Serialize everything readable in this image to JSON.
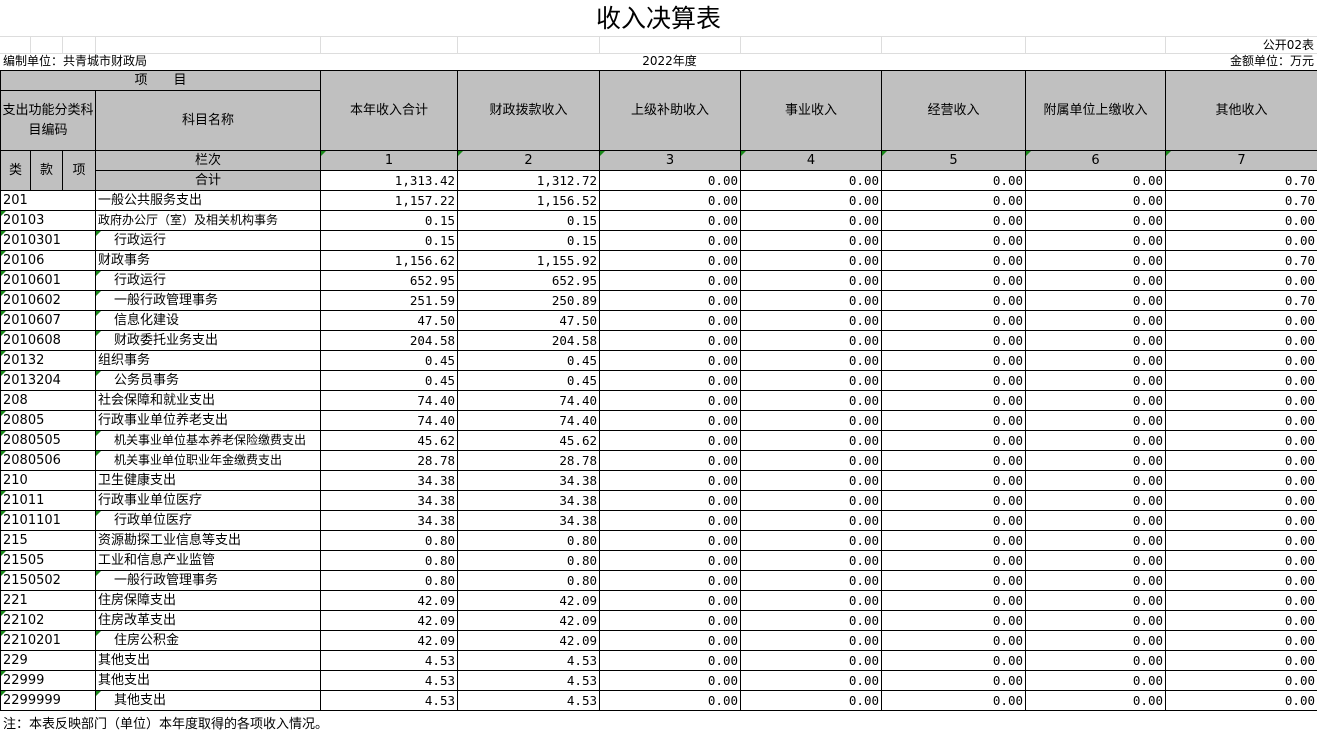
{
  "title": "收入决算表",
  "form_code": "公开02表",
  "unit_label": "编制单位：共青城市财政局",
  "year": "2022年度",
  "amount_unit": "金额单位：万元",
  "header": {
    "item": "项　　目",
    "code_group": "支出功能分类科目编码",
    "name": "科目名称",
    "columns": [
      "本年收入合计",
      "财政拨款收入",
      "上级补助收入",
      "事业收入",
      "经营收入",
      "附属单位上缴收入",
      "其他收入"
    ],
    "lei": "类",
    "kuan": "款",
    "xiang": "项",
    "lanci": "栏次",
    "col_numbers": [
      "1",
      "2",
      "3",
      "4",
      "5",
      "6",
      "7"
    ],
    "total_label": "合计",
    "total_values": [
      "1,313.42",
      "1,312.72",
      "0.00",
      "0.00",
      "0.00",
      "0.00",
      "0.70"
    ]
  },
  "rows": [
    {
      "code": "201",
      "name": "一般公共服务支出",
      "level": 1,
      "values": [
        "1,157.22",
        "1,156.52",
        "0.00",
        "0.00",
        "0.00",
        "0.00",
        "0.70"
      ]
    },
    {
      "code": "20103",
      "name": "政府办公厅（室）及相关机构事务",
      "level": 2,
      "values": [
        "0.15",
        "0.15",
        "0.00",
        "0.00",
        "0.00",
        "0.00",
        "0.00"
      ]
    },
    {
      "code": "2010301",
      "name": "行政运行",
      "level": 3,
      "values": [
        "0.15",
        "0.15",
        "0.00",
        "0.00",
        "0.00",
        "0.00",
        "0.00"
      ]
    },
    {
      "code": "20106",
      "name": "财政事务",
      "level": 2,
      "values": [
        "1,156.62",
        "1,155.92",
        "0.00",
        "0.00",
        "0.00",
        "0.00",
        "0.70"
      ]
    },
    {
      "code": "2010601",
      "name": "行政运行",
      "level": 3,
      "values": [
        "652.95",
        "652.95",
        "0.00",
        "0.00",
        "0.00",
        "0.00",
        "0.00"
      ]
    },
    {
      "code": "2010602",
      "name": "一般行政管理事务",
      "level": 3,
      "values": [
        "251.59",
        "250.89",
        "0.00",
        "0.00",
        "0.00",
        "0.00",
        "0.70"
      ]
    },
    {
      "code": "2010607",
      "name": "信息化建设",
      "level": 3,
      "values": [
        "47.50",
        "47.50",
        "0.00",
        "0.00",
        "0.00",
        "0.00",
        "0.00"
      ]
    },
    {
      "code": "2010608",
      "name": "财政委托业务支出",
      "level": 3,
      "values": [
        "204.58",
        "204.58",
        "0.00",
        "0.00",
        "0.00",
        "0.00",
        "0.00"
      ]
    },
    {
      "code": "20132",
      "name": "组织事务",
      "level": 2,
      "values": [
        "0.45",
        "0.45",
        "0.00",
        "0.00",
        "0.00",
        "0.00",
        "0.00"
      ]
    },
    {
      "code": "2013204",
      "name": "公务员事务",
      "level": 3,
      "values": [
        "0.45",
        "0.45",
        "0.00",
        "0.00",
        "0.00",
        "0.00",
        "0.00"
      ]
    },
    {
      "code": "208",
      "name": "社会保障和就业支出",
      "level": 1,
      "values": [
        "74.40",
        "74.40",
        "0.00",
        "0.00",
        "0.00",
        "0.00",
        "0.00"
      ]
    },
    {
      "code": "20805",
      "name": "行政事业单位养老支出",
      "level": 2,
      "values": [
        "74.40",
        "74.40",
        "0.00",
        "0.00",
        "0.00",
        "0.00",
        "0.00"
      ]
    },
    {
      "code": "2080505",
      "name": "机关事业单位基本养老保险缴费支出",
      "level": 3,
      "values": [
        "45.62",
        "45.62",
        "0.00",
        "0.00",
        "0.00",
        "0.00",
        "0.00"
      ]
    },
    {
      "code": "2080506",
      "name": "机关事业单位职业年金缴费支出",
      "level": 3,
      "values": [
        "28.78",
        "28.78",
        "0.00",
        "0.00",
        "0.00",
        "0.00",
        "0.00"
      ]
    },
    {
      "code": "210",
      "name": "卫生健康支出",
      "level": 1,
      "values": [
        "34.38",
        "34.38",
        "0.00",
        "0.00",
        "0.00",
        "0.00",
        "0.00"
      ]
    },
    {
      "code": "21011",
      "name": "行政事业单位医疗",
      "level": 2,
      "values": [
        "34.38",
        "34.38",
        "0.00",
        "0.00",
        "0.00",
        "0.00",
        "0.00"
      ]
    },
    {
      "code": "2101101",
      "name": "行政单位医疗",
      "level": 3,
      "values": [
        "34.38",
        "34.38",
        "0.00",
        "0.00",
        "0.00",
        "0.00",
        "0.00"
      ]
    },
    {
      "code": "215",
      "name": "资源勘探工业信息等支出",
      "level": 1,
      "values": [
        "0.80",
        "0.80",
        "0.00",
        "0.00",
        "0.00",
        "0.00",
        "0.00"
      ]
    },
    {
      "code": "21505",
      "name": "工业和信息产业监管",
      "level": 2,
      "values": [
        "0.80",
        "0.80",
        "0.00",
        "0.00",
        "0.00",
        "0.00",
        "0.00"
      ]
    },
    {
      "code": "2150502",
      "name": "一般行政管理事务",
      "level": 3,
      "values": [
        "0.80",
        "0.80",
        "0.00",
        "0.00",
        "0.00",
        "0.00",
        "0.00"
      ]
    },
    {
      "code": "221",
      "name": "住房保障支出",
      "level": 1,
      "values": [
        "42.09",
        "42.09",
        "0.00",
        "0.00",
        "0.00",
        "0.00",
        "0.00"
      ]
    },
    {
      "code": "22102",
      "name": "住房改革支出",
      "level": 2,
      "values": [
        "42.09",
        "42.09",
        "0.00",
        "0.00",
        "0.00",
        "0.00",
        "0.00"
      ]
    },
    {
      "code": "2210201",
      "name": "住房公积金",
      "level": 3,
      "values": [
        "42.09",
        "42.09",
        "0.00",
        "0.00",
        "0.00",
        "0.00",
        "0.00"
      ]
    },
    {
      "code": "229",
      "name": "其他支出",
      "level": 1,
      "values": [
        "4.53",
        "4.53",
        "0.00",
        "0.00",
        "0.00",
        "0.00",
        "0.00"
      ]
    },
    {
      "code": "22999",
      "name": "其他支出",
      "level": 2,
      "values": [
        "4.53",
        "4.53",
        "0.00",
        "0.00",
        "0.00",
        "0.00",
        "0.00"
      ]
    },
    {
      "code": "2299999",
      "name": "其他支出",
      "level": 3,
      "values": [
        "4.53",
        "4.53",
        "0.00",
        "0.00",
        "0.00",
        "0.00",
        "0.00"
      ]
    }
  ],
  "footer_note": "注：本表反映部门（单位）本年度取得的各项收入情况。",
  "colors": {
    "header_bg": "#c0c0c0",
    "marker": "#1a8a1a"
  }
}
